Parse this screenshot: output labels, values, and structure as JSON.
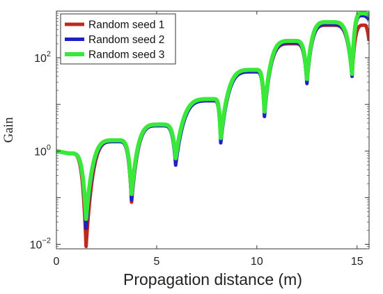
{
  "chart_data": {
    "type": "line",
    "xlabel": "Propagation distance (m)",
    "ylabel": "Gain",
    "xlim": [
      0,
      15.6
    ],
    "ylim": [
      0.008,
      1000
    ],
    "yscale": "log",
    "xticks": [
      0,
      5,
      10,
      15
    ],
    "yticks": [
      {
        "value": 0.01,
        "base": "10",
        "exp": "−2"
      },
      {
        "value": 1,
        "base": "10",
        "exp": "0"
      },
      {
        "value": 100,
        "base": "10",
        "exp": "2"
      }
    ],
    "legend_position": "top-left",
    "grid": false,
    "series": [
      {
        "name": "Random seed 1",
        "color": "#c0281e",
        "peaks": [
          [
            0,
            1.0
          ],
          [
            3.0,
            1.6
          ],
          [
            5.2,
            3.5
          ],
          [
            7.8,
            12
          ],
          [
            9.9,
            50
          ],
          [
            11.8,
            200
          ],
          [
            13.6,
            500
          ],
          [
            15.4,
            500
          ]
        ],
        "dips": [
          [
            1.48,
            0.009
          ],
          [
            3.75,
            0.08
          ],
          [
            5.95,
            0.6
          ],
          [
            8.2,
            1.6
          ],
          [
            10.38,
            6
          ],
          [
            12.5,
            30
          ],
          [
            14.75,
            40
          ]
        ],
        "end": [
          15.6,
          230
        ]
      },
      {
        "name": "Random seed 2",
        "color": "#1f1fc8",
        "peaks": [
          [
            0,
            1.0
          ],
          [
            3.0,
            1.6
          ],
          [
            5.2,
            3.5
          ],
          [
            7.8,
            12
          ],
          [
            9.9,
            50
          ],
          [
            11.8,
            210
          ],
          [
            13.6,
            520
          ],
          [
            15.3,
            800
          ]
        ],
        "dips": [
          [
            1.48,
            0.022
          ],
          [
            3.75,
            0.09
          ],
          [
            5.95,
            0.5
          ],
          [
            8.2,
            1.5
          ],
          [
            10.38,
            5.5
          ],
          [
            12.5,
            28
          ],
          [
            14.75,
            40
          ]
        ],
        "end": [
          15.6,
          650
        ]
      },
      {
        "name": "Random seed 3",
        "color": "#3ae83a",
        "peaks": [
          [
            0,
            1.0
          ],
          [
            3.0,
            1.7
          ],
          [
            5.2,
            3.7
          ],
          [
            7.8,
            13
          ],
          [
            9.9,
            55
          ],
          [
            11.8,
            230
          ],
          [
            13.6,
            580
          ],
          [
            15.3,
            900
          ]
        ],
        "dips": [
          [
            1.48,
            0.035
          ],
          [
            3.75,
            0.12
          ],
          [
            5.95,
            0.7
          ],
          [
            8.2,
            1.9
          ],
          [
            10.38,
            7
          ],
          [
            12.5,
            35
          ],
          [
            14.75,
            45
          ]
        ],
        "end": [
          15.6,
          820
        ]
      }
    ]
  }
}
